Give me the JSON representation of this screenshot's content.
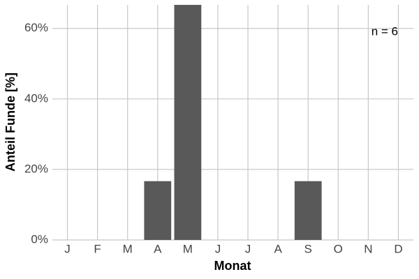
{
  "chart_data": {
    "type": "bar",
    "x_label": "Monat",
    "y_label": "Anteil Funde [%]",
    "annotation": "n = 6",
    "categories": [
      "J",
      "F",
      "M",
      "A",
      "M",
      "J",
      "J",
      "A",
      "S",
      "O",
      "N",
      "D"
    ],
    "values": [
      0,
      0,
      0,
      16.67,
      66.67,
      0,
      0,
      0,
      16.67,
      0,
      0,
      0
    ],
    "color": "#595959",
    "ylim": [
      0,
      66.67
    ],
    "yticks": [
      {
        "value": 0,
        "label": "0%"
      },
      {
        "value": 20,
        "label": "20%"
      },
      {
        "value": 40,
        "label": "40%"
      },
      {
        "value": 60,
        "label": "60%"
      }
    ],
    "grid": true
  }
}
